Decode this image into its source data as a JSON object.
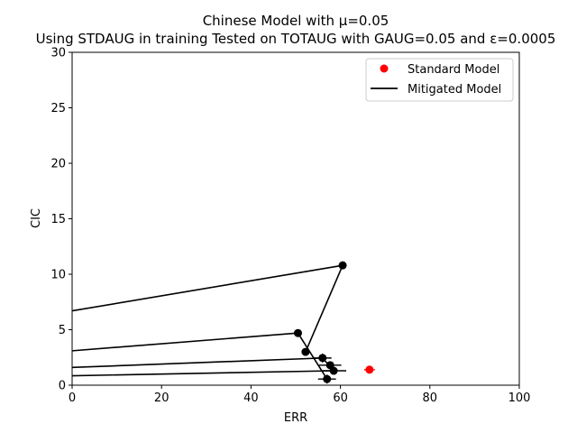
{
  "chart_data": {
    "type": "scatter",
    "title_lines": [
      "Chinese Model with μ=0.05",
      "Using STDAUG in training Tested on TOTAUG with GAUG=0.05 and ε=0.0005"
    ],
    "xlabel": "ERR",
    "ylabel": "CIC",
    "xlim": [
      0,
      100
    ],
    "ylim": [
      0,
      30
    ],
    "xticks": [
      0,
      20,
      40,
      60,
      80,
      100
    ],
    "yticks": [
      0,
      5,
      10,
      15,
      20,
      25,
      30
    ],
    "grid": false,
    "legend_position": "top-right",
    "colors": {
      "standard": "#ff0000",
      "mitigated": "#000000"
    },
    "series": [
      {
        "name": "Standard Model",
        "kind": "points",
        "points": [
          {
            "x": 66.5,
            "y": 1.4,
            "xerr": 1.2,
            "yerr": 0.15
          }
        ]
      },
      {
        "name": "Mitigated Model",
        "kind": "points-with-lines",
        "points": [
          {
            "x": 60.5,
            "y": 10.8
          },
          {
            "x": 52.2,
            "y": 3.0
          },
          {
            "x": 50.5,
            "y": 4.7
          },
          {
            "x": 56.0,
            "y": 2.45,
            "xerr": 2.0,
            "yerr": 0.4
          },
          {
            "x": 57.0,
            "y": 0.55,
            "xerr": 2.0,
            "yerr": 0.4
          },
          {
            "x": 58.5,
            "y": 1.3,
            "xerr": 2.8,
            "yerr": 0.35
          },
          {
            "x": 57.7,
            "y": 1.8,
            "xerr": 2.5,
            "yerr": 0.35
          }
        ],
        "segments": [
          {
            "from": {
              "x": 0,
              "y": 6.7
            },
            "to": {
              "x": 60.5,
              "y": 10.8
            }
          },
          {
            "from": {
              "x": 60.5,
              "y": 10.8
            },
            "to": {
              "x": 52.2,
              "y": 3.0
            }
          },
          {
            "from": {
              "x": 0,
              "y": 3.1
            },
            "to": {
              "x": 50.5,
              "y": 4.7
            }
          },
          {
            "from": {
              "x": 50.5,
              "y": 4.7
            },
            "to": {
              "x": 57.0,
              "y": 0.55
            }
          },
          {
            "from": {
              "x": 0,
              "y": 1.6
            },
            "to": {
              "x": 56.0,
              "y": 2.45
            }
          },
          {
            "from": {
              "x": 56.0,
              "y": 2.45
            },
            "to": {
              "x": 58.5,
              "y": 1.3
            }
          },
          {
            "from": {
              "x": 0,
              "y": 0.85
            },
            "to": {
              "x": 58.5,
              "y": 1.3
            }
          }
        ]
      }
    ]
  }
}
